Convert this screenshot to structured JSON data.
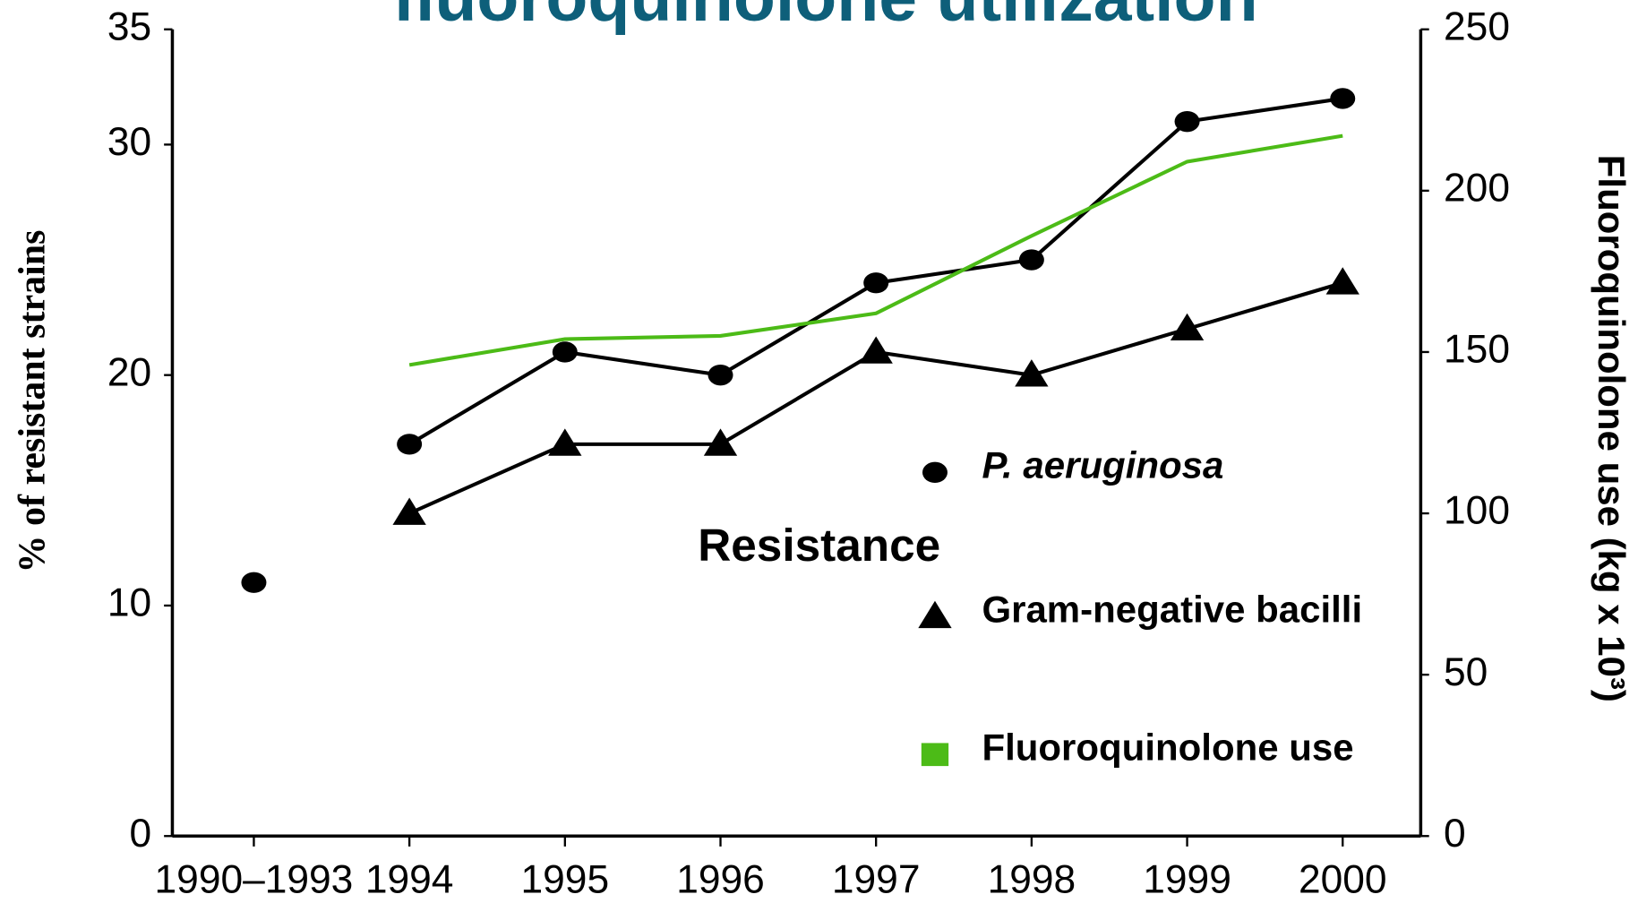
{
  "chart_data": {
    "type": "line",
    "title": "fluoroquinolone utilization",
    "categories": [
      "1990–1993",
      "1994",
      "1995",
      "1996",
      "1997",
      "1998",
      "1999",
      "2000"
    ],
    "series": [
      {
        "name": "P. aeruginosa",
        "color": "#000000",
        "marker": "circle",
        "values": [
          11,
          17,
          21,
          20,
          24,
          25,
          31,
          32
        ]
      },
      {
        "name": "Gram-negative bacilli",
        "color": "#000000",
        "marker": "triangle",
        "values": [
          null,
          14,
          17,
          17,
          21,
          20,
          22,
          24
        ]
      },
      {
        "name": "Fluoroquinolone use",
        "color": "#4cbb17",
        "marker": "square",
        "axis": "y2",
        "values": [
          null,
          146,
          154,
          155,
          162,
          186,
          209,
          217
        ]
      }
    ],
    "legend_title": "Resistance",
    "ylabel": "% of resistant strains",
    "y2label": "Fluoroquinolone use (kg x 10³)",
    "ylim": [
      0,
      35
    ],
    "yticks": [
      0,
      10,
      20,
      30,
      35
    ],
    "y2lim": [
      0,
      250
    ],
    "y2ticks": [
      0,
      50,
      100,
      150,
      200,
      250
    ]
  }
}
